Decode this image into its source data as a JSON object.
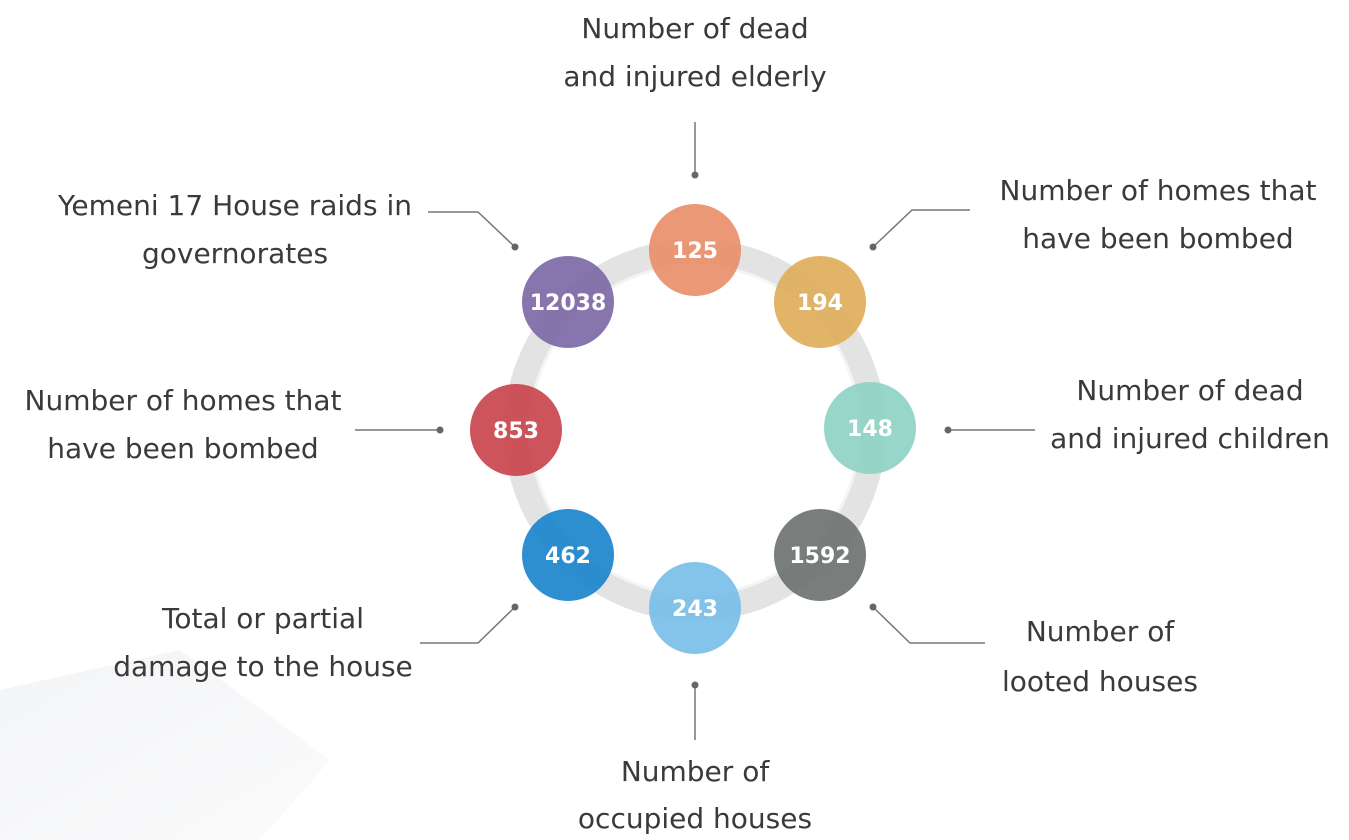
{
  "nodes": [
    {
      "value": 125,
      "label": [
        "Number of dead",
        "and injured elderly"
      ]
    },
    {
      "value": 194,
      "label": [
        "Number of homes that",
        "have been bombed"
      ]
    },
    {
      "value": 148,
      "label": [
        "Number of dead",
        "and injured children"
      ]
    },
    {
      "value": 1592,
      "label": [
        "Number of",
        "looted houses"
      ]
    },
    {
      "value": 243,
      "label": [
        "Number of",
        "occupied houses"
      ]
    },
    {
      "value": 462,
      "label": [
        "Total or partial",
        "damage to the house"
      ]
    },
    {
      "value": 853,
      "label": [
        "Number of homes that",
        "have been bombed"
      ]
    },
    {
      "value": 12038,
      "label": [
        "Yemeni 17 House raids in",
        "governorates"
      ]
    }
  ]
}
